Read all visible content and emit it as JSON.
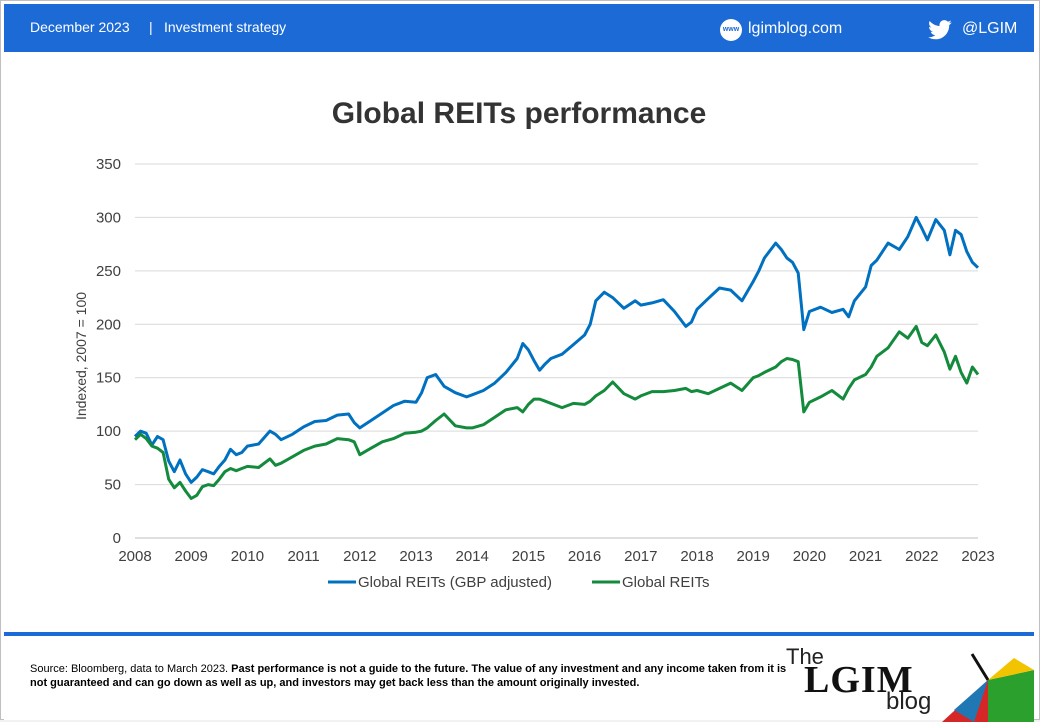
{
  "header": {
    "date": "December 2023",
    "separator": "|",
    "section": "Investment strategy",
    "site_icon_text": "www",
    "site": "lgimblog.com",
    "handle": "@LGIM"
  },
  "footer": {
    "source_plain": "Source: Bloomberg, data to March 2023. ",
    "source_bold": "Past performance is not a guide to the future. The value of any investment and any income taken from it is not guaranteed and can go down as well as up, and investors may get back less than the amount originally invested.",
    "logo_the": "The",
    "logo_lgim": "LGIM",
    "logo_blog": "blog"
  },
  "colors": {
    "header_bg": "#1b6ad6",
    "series_gbp": "#0070c0",
    "series_local": "#138a3c"
  },
  "chart_data": {
    "type": "line",
    "title": "Global REITs performance",
    "ylabel": "Indexed,  2007 = 100",
    "xlabel": "",
    "ylim": [
      0,
      350
    ],
    "yticks": [
      0,
      50,
      100,
      150,
      200,
      250,
      300,
      350
    ],
    "xlim": [
      2008,
      2023
    ],
    "xticks": [
      2008,
      2009,
      2010,
      2011,
      2012,
      2013,
      2014,
      2015,
      2016,
      2017,
      2018,
      2019,
      2020,
      2021,
      2022,
      2023
    ],
    "grid": true,
    "legend": "bottom",
    "series": [
      {
        "name": "Global REITs (GBP adjusted)",
        "color": "#0070c0",
        "x": [
          2008.0,
          2008.1,
          2008.2,
          2008.3,
          2008.4,
          2008.5,
          2008.6,
          2008.7,
          2008.8,
          2008.9,
          2009.0,
          2009.1,
          2009.2,
          2009.3,
          2009.4,
          2009.5,
          2009.6,
          2009.7,
          2009.8,
          2009.9,
          2010.0,
          2010.2,
          2010.4,
          2010.5,
          2010.6,
          2010.8,
          2011.0,
          2011.2,
          2011.4,
          2011.6,
          2011.8,
          2011.9,
          2012.0,
          2012.2,
          2012.4,
          2012.6,
          2012.8,
          2013.0,
          2013.1,
          2013.2,
          2013.35,
          2013.5,
          2013.7,
          2013.9,
          2014.0,
          2014.2,
          2014.4,
          2014.6,
          2014.8,
          2014.9,
          2015.0,
          2015.1,
          2015.2,
          2015.3,
          2015.4,
          2015.6,
          2015.8,
          2016.0,
          2016.1,
          2016.2,
          2016.35,
          2016.5,
          2016.7,
          2016.9,
          2017.0,
          2017.2,
          2017.4,
          2017.6,
          2017.8,
          2017.9,
          2018.0,
          2018.2,
          2018.4,
          2018.6,
          2018.8,
          2019.0,
          2019.1,
          2019.2,
          2019.4,
          2019.5,
          2019.6,
          2019.7,
          2019.8,
          2019.9,
          2020.0,
          2020.2,
          2020.4,
          2020.6,
          2020.7,
          2020.8,
          2021.0,
          2021.1,
          2021.2,
          2021.4,
          2021.6,
          2021.75,
          2021.9,
          2022.0,
          2022.1,
          2022.25,
          2022.4,
          2022.5,
          2022.6,
          2022.7,
          2022.8,
          2022.9,
          2023.0
        ],
        "values": [
          95,
          100,
          98,
          87,
          95,
          92,
          72,
          62,
          73,
          60,
          52,
          57,
          64,
          62,
          60,
          67,
          73,
          83,
          78,
          80,
          86,
          88,
          100,
          97,
          92,
          97,
          104,
          109,
          110,
          115,
          116,
          108,
          103,
          110,
          117,
          124,
          128,
          127,
          136,
          150,
          153,
          142,
          136,
          132,
          134,
          138,
          145,
          155,
          168,
          182,
          176,
          166,
          157,
          163,
          168,
          172,
          181,
          190,
          200,
          222,
          230,
          225,
          215,
          222,
          218,
          220,
          223,
          212,
          198,
          202,
          214,
          224,
          234,
          232,
          222,
          240,
          250,
          262,
          276,
          270,
          262,
          258,
          248,
          195,
          212,
          216,
          211,
          214,
          207,
          222,
          235,
          255,
          260,
          276,
          270,
          282,
          300,
          290,
          279,
          298,
          288,
          265,
          288,
          284,
          268,
          258,
          253
        ]
      },
      {
        "name": "Global REITs",
        "color": "#138a3c",
        "x": [
          2008.0,
          2008.1,
          2008.2,
          2008.3,
          2008.4,
          2008.5,
          2008.6,
          2008.7,
          2008.8,
          2008.9,
          2009.0,
          2009.1,
          2009.2,
          2009.3,
          2009.4,
          2009.5,
          2009.6,
          2009.7,
          2009.8,
          2009.9,
          2010.0,
          2010.2,
          2010.4,
          2010.5,
          2010.6,
          2010.8,
          2011.0,
          2011.2,
          2011.4,
          2011.6,
          2011.8,
          2011.9,
          2012.0,
          2012.2,
          2012.4,
          2012.6,
          2012.8,
          2013.0,
          2013.1,
          2013.2,
          2013.35,
          2013.5,
          2013.7,
          2013.9,
          2014.0,
          2014.2,
          2014.4,
          2014.6,
          2014.8,
          2014.9,
          2015.0,
          2015.1,
          2015.2,
          2015.3,
          2015.4,
          2015.6,
          2015.8,
          2016.0,
          2016.1,
          2016.2,
          2016.35,
          2016.5,
          2016.7,
          2016.9,
          2017.0,
          2017.2,
          2017.4,
          2017.6,
          2017.8,
          2017.9,
          2018.0,
          2018.2,
          2018.4,
          2018.6,
          2018.8,
          2019.0,
          2019.1,
          2019.2,
          2019.4,
          2019.5,
          2019.6,
          2019.7,
          2019.8,
          2019.9,
          2020.0,
          2020.2,
          2020.4,
          2020.6,
          2020.7,
          2020.8,
          2021.0,
          2021.1,
          2021.2,
          2021.4,
          2021.6,
          2021.75,
          2021.9,
          2022.0,
          2022.1,
          2022.25,
          2022.4,
          2022.5,
          2022.6,
          2022.7,
          2022.8,
          2022.9,
          2023.0
        ],
        "values": [
          92,
          97,
          93,
          86,
          84,
          80,
          55,
          47,
          52,
          44,
          37,
          40,
          48,
          50,
          49,
          55,
          62,
          65,
          63,
          65,
          67,
          66,
          74,
          68,
          70,
          76,
          82,
          86,
          88,
          93,
          92,
          90,
          78,
          84,
          90,
          93,
          98,
          99,
          100,
          103,
          110,
          116,
          105,
          103,
          103,
          106,
          113,
          120,
          122,
          118,
          125,
          130,
          130,
          128,
          126,
          122,
          126,
          125,
          128,
          133,
          138,
          146,
          135,
          130,
          133,
          137,
          137,
          138,
          140,
          137,
          138,
          135,
          140,
          145,
          138,
          150,
          152,
          155,
          160,
          165,
          168,
          167,
          165,
          118,
          127,
          132,
          138,
          130,
          140,
          148,
          153,
          160,
          170,
          178,
          193,
          187,
          198,
          183,
          180,
          190,
          174,
          158,
          170,
          155,
          145,
          160,
          153
        ]
      }
    ]
  }
}
